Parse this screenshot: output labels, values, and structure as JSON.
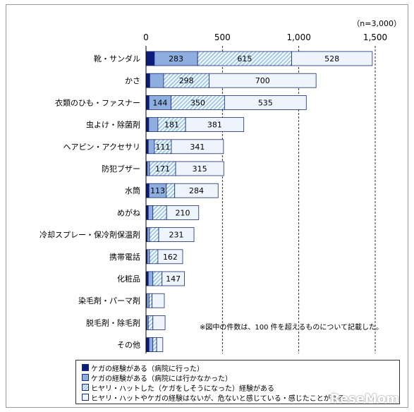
{
  "chart_data": {
    "type": "bar",
    "orientation": "horizontal",
    "stacked": true,
    "sample_size_label": "（n=3,000）",
    "xlim": [
      0,
      1500
    ],
    "xticks": [
      0,
      500,
      1000,
      1500
    ],
    "xtick_labels": [
      "0",
      "500",
      "1,000",
      "1,500"
    ],
    "grid": "vertical-dashed",
    "categories": [
      "靴・サンダル",
      "かさ",
      "衣類のひも・ファスナー",
      "虫よけ・除菌剤",
      "ヘアピン・アクセサリ",
      "防犯ブザー",
      "水筒",
      "めがね",
      "冷却スプレー・保冷剤保温剤",
      "携帯電話",
      "化粧品",
      "染毛剤・パーマ剤",
      "脱毛剤・除毛剤",
      "その他"
    ],
    "series": [
      {
        "name": "ケガの経験がある（病院に行った）",
        "color": "#0b1c7a",
        "values": [
          55,
          25,
          20,
          18,
          15,
          8,
          20,
          15,
          8,
          8,
          15,
          5,
          5,
          20
        ]
      },
      {
        "name": "ケガの経験がある（病院には行かなかった）",
        "color": "#8eaee0",
        "values": [
          283,
          90,
          144,
          60,
          40,
          15,
          113,
          30,
          15,
          15,
          30,
          15,
          10,
          25
        ]
      },
      {
        "name": "ヒヤリ・ハットした（ケガをしそうになった）経験がある",
        "color": "#9ec9ea",
        "values": [
          615,
          298,
          350,
          181,
          111,
          171,
          55,
          90,
          60,
          55,
          60,
          20,
          30,
          25
        ]
      },
      {
        "name": "ヒヤリ・ハットやケガの経験はないが、危ないと感じている・感じたことがある",
        "color": "#eef4fb",
        "values": [
          528,
          700,
          535,
          381,
          341,
          315,
          284,
          210,
          231,
          162,
          147,
          80,
          80,
          40
        ]
      }
    ],
    "label_threshold": 100,
    "annotation": "※図中の件数は、100 件を超えるものについて記載した。"
  },
  "watermark": "ReseMom"
}
